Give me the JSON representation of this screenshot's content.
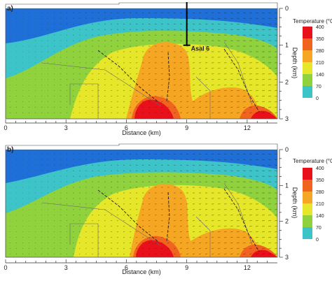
{
  "chart_data": [
    {
      "type": "heatmap",
      "panel_label": "a)",
      "xlabel": "Distance (km)",
      "ylabel": "Depth (km)",
      "x_ticks": [
        0,
        3,
        6,
        9,
        12
      ],
      "y_ticks": [
        0,
        1,
        2,
        3
      ],
      "xlim": [
        0,
        13.5
      ],
      "ylim": [
        3,
        0
      ],
      "colorbar_title": "Temperature (°C)",
      "colorbar_levels": [
        400,
        350,
        280,
        210,
        140,
        70,
        0
      ],
      "well": {
        "name": "Asal 6",
        "x": 9.0,
        "depth": 1.0
      },
      "hot_zones": [
        {
          "x": 7.4,
          "depth": 2.6,
          "temperature": 400
        },
        {
          "x": 12.8,
          "depth": 2.8,
          "temperature": 400
        }
      ]
    },
    {
      "type": "heatmap",
      "panel_label": "b)",
      "xlabel": "Distance (km)",
      "ylabel": "Depth (km)",
      "x_ticks": [
        0,
        3,
        6,
        9,
        12
      ],
      "y_ticks": [
        0,
        1,
        2,
        3
      ],
      "xlim": [
        0,
        13.5
      ],
      "ylim": [
        3,
        0
      ],
      "colorbar_title": "Temperature (°C)",
      "colorbar_levels": [
        400,
        350,
        280,
        210,
        140,
        70,
        0
      ],
      "hot_zones": [
        {
          "x": 7.4,
          "depth": 2.7,
          "temperature": 400
        },
        {
          "x": 12.8,
          "depth": 2.8,
          "temperature": 400
        }
      ]
    }
  ],
  "colors": {
    "t400": "#e8101a",
    "t350": "#f06420",
    "t280": "#f5a623",
    "t210": "#e6e62a",
    "t140": "#8fd23e",
    "t70": "#3cc4c8",
    "t0": "#1e6fd8"
  }
}
